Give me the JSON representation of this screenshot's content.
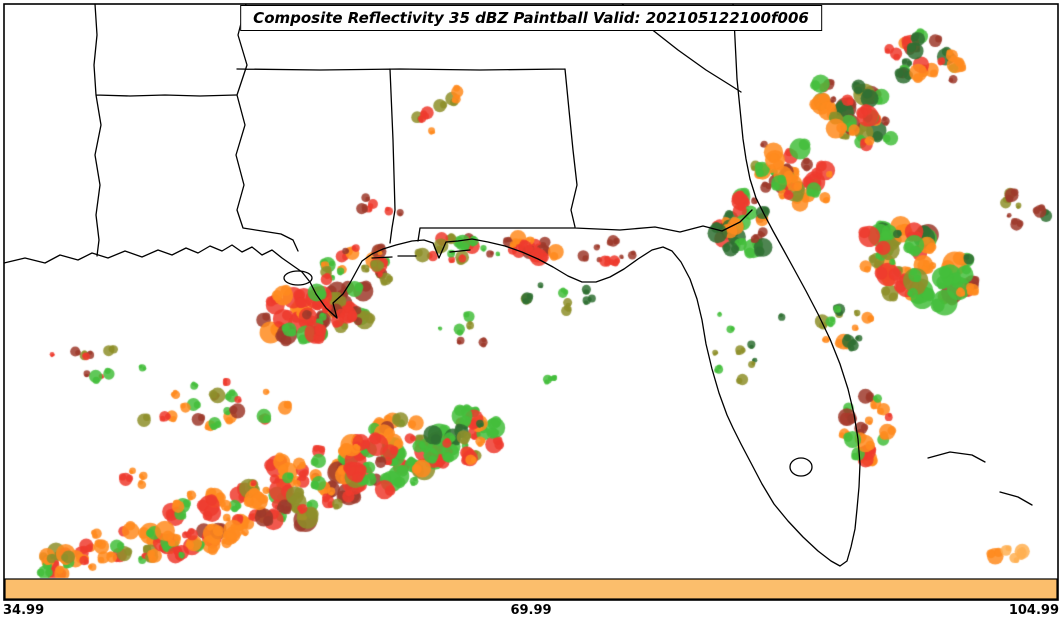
{
  "title": "Composite Reflectivity 35 dBZ Paintball Valid: 202105122100f006",
  "axis": {
    "ticks": [
      "34.99",
      "69.99",
      "104.99"
    ]
  },
  "colorbar_strip_color": "#FBBE6C",
  "palette": {
    "red": "#EE3B2E",
    "orange": "#FF8B1F",
    "lightorange": "#FFB052",
    "green": "#44BE3C",
    "darkgreen": "#2F7032",
    "olive": "#8E8F2A",
    "darkred": "#9E392C"
  },
  "chart_data": {
    "type": "paintball-map",
    "title": "Composite Reflectivity 35 dBZ Paintball",
    "threshold_dbz": 35,
    "valid": "202105122100f006",
    "x_ticks": [
      "34.99",
      "69.99",
      "104.99"
    ],
    "clusters": [
      {
        "name": "sw-band-outer",
        "cx": 105,
        "cy": 552,
        "sx": 75,
        "sy": 20,
        "rot": -12,
        "n": 42,
        "rmin": 3,
        "rmax": 10,
        "seed": 11,
        "colors": [
          "orange",
          "orange",
          "orange",
          "red",
          "green",
          "olive"
        ]
      },
      {
        "name": "sw-band-low",
        "cx": 205,
        "cy": 522,
        "sx": 60,
        "sy": 30,
        "rot": -18,
        "n": 48,
        "rmin": 3,
        "rmax": 11,
        "seed": 12,
        "colors": [
          "orange",
          "orange",
          "red",
          "red",
          "green",
          "darkred"
        ]
      },
      {
        "name": "sw-band-mid",
        "cx": 300,
        "cy": 488,
        "sx": 60,
        "sy": 34,
        "rot": -18,
        "n": 60,
        "rmin": 3,
        "rmax": 12,
        "seed": 13,
        "colors": [
          "orange",
          "orange",
          "orange",
          "red",
          "red",
          "green",
          "darkred",
          "olive"
        ]
      },
      {
        "name": "sw-band-upper",
        "cx": 395,
        "cy": 455,
        "sx": 55,
        "sy": 34,
        "rot": -18,
        "n": 60,
        "rmin": 3,
        "rmax": 12,
        "seed": 14,
        "colors": [
          "orange",
          "red",
          "red",
          "green",
          "green",
          "darkred",
          "olive"
        ]
      },
      {
        "name": "sw-band-east",
        "cx": 462,
        "cy": 438,
        "sx": 38,
        "sy": 26,
        "rot": -14,
        "n": 38,
        "rmin": 3,
        "rmax": 11,
        "seed": 15,
        "colors": [
          "green",
          "green",
          "orange",
          "red",
          "darkgreen",
          "olive"
        ]
      },
      {
        "name": "sw-scatter-north",
        "cx": 215,
        "cy": 408,
        "sx": 80,
        "sy": 26,
        "rot": -10,
        "n": 22,
        "rmin": 2,
        "rmax": 8,
        "seed": 16,
        "colors": [
          "olive",
          "green",
          "darkred",
          "red",
          "orange"
        ]
      },
      {
        "name": "west-olive-scatter",
        "cx": 95,
        "cy": 362,
        "sx": 55,
        "sy": 16,
        "rot": 0,
        "n": 12,
        "rmin": 2,
        "rmax": 7,
        "seed": 17,
        "colors": [
          "olive",
          "green",
          "darkred",
          "red"
        ]
      },
      {
        "name": "gulf-isolated-red",
        "cx": 135,
        "cy": 478,
        "sx": 14,
        "sy": 8,
        "rot": 0,
        "n": 4,
        "rmin": 3,
        "rmax": 7,
        "seed": 38,
        "colors": [
          "red",
          "orange"
        ]
      },
      {
        "name": "la-coast-dense",
        "cx": 315,
        "cy": 312,
        "sx": 60,
        "sy": 26,
        "rot": -8,
        "n": 50,
        "rmin": 3,
        "rmax": 11,
        "seed": 18,
        "colors": [
          "red",
          "red",
          "darkred",
          "darkred",
          "orange",
          "green",
          "olive"
        ]
      },
      {
        "name": "la-inland",
        "cx": 358,
        "cy": 268,
        "sx": 42,
        "sy": 22,
        "rot": 0,
        "n": 26,
        "rmin": 2,
        "rmax": 9,
        "seed": 19,
        "colors": [
          "green",
          "red",
          "darkred",
          "olive",
          "orange"
        ]
      },
      {
        "name": "ms-al-coast",
        "cx": 458,
        "cy": 250,
        "sx": 48,
        "sy": 13,
        "rot": 0,
        "n": 20,
        "rmin": 2,
        "rmax": 8,
        "seed": 20,
        "colors": [
          "red",
          "green",
          "darkred",
          "olive"
        ]
      },
      {
        "name": "fl-panhandle-coast",
        "cx": 532,
        "cy": 247,
        "sx": 32,
        "sy": 11,
        "rot": 0,
        "n": 16,
        "rmin": 3,
        "rmax": 9,
        "seed": 21,
        "colors": [
          "red",
          "red",
          "orange",
          "darkred"
        ]
      },
      {
        "name": "panhandle-east-scatter",
        "cx": 608,
        "cy": 252,
        "sx": 32,
        "sy": 14,
        "rot": 0,
        "n": 10,
        "rmin": 2,
        "rmax": 7,
        "seed": 22,
        "colors": [
          "darkred",
          "red",
          "olive"
        ]
      },
      {
        "name": "mid-small-scatter",
        "cx": 560,
        "cy": 300,
        "sx": 35,
        "sy": 18,
        "rot": 0,
        "n": 9,
        "rmin": 2,
        "rmax": 6,
        "seed": 23,
        "colors": [
          "olive",
          "green",
          "darkgreen"
        ]
      },
      {
        "name": "nola-east-scatter",
        "cx": 470,
        "cy": 330,
        "sx": 30,
        "sy": 14,
        "rot": 0,
        "n": 6,
        "rmin": 2,
        "rmax": 6,
        "seed": 37,
        "colors": [
          "olive",
          "darkred",
          "green"
        ]
      },
      {
        "name": "center-green-dot",
        "cx": 545,
        "cy": 380,
        "sx": 10,
        "sy": 8,
        "rot": 0,
        "n": 3,
        "rmin": 2,
        "rmax": 5,
        "seed": 36,
        "colors": [
          "green"
        ]
      },
      {
        "name": "al-top-scatter",
        "cx": 448,
        "cy": 112,
        "sx": 34,
        "sy": 22,
        "rot": 0,
        "n": 8,
        "rmin": 2,
        "rmax": 7,
        "seed": 24,
        "colors": [
          "orange",
          "olive",
          "red"
        ]
      },
      {
        "name": "ms-line-scatter",
        "cx": 382,
        "cy": 205,
        "sx": 22,
        "sy": 14,
        "rot": 0,
        "n": 6,
        "rmin": 2,
        "rmax": 6,
        "seed": 25,
        "colors": [
          "red",
          "darkred"
        ]
      },
      {
        "name": "ga-coast-cluster",
        "cx": 742,
        "cy": 228,
        "sx": 26,
        "sy": 34,
        "rot": 0,
        "n": 28,
        "rmin": 3,
        "rmax": 10,
        "seed": 26,
        "colors": [
          "red",
          "green",
          "orange",
          "darkred",
          "darkgreen"
        ]
      },
      {
        "name": "ga-band-low",
        "cx": 792,
        "cy": 172,
        "sx": 45,
        "sy": 30,
        "rot": 32,
        "n": 40,
        "rmin": 3,
        "rmax": 11,
        "seed": 27,
        "colors": [
          "red",
          "orange",
          "orange",
          "darkred",
          "green",
          "olive"
        ]
      },
      {
        "name": "ga-band-mid",
        "cx": 858,
        "cy": 112,
        "sx": 48,
        "sy": 28,
        "rot": 32,
        "n": 38,
        "rmin": 3,
        "rmax": 11,
        "seed": 28,
        "colors": [
          "red",
          "orange",
          "darkred",
          "green",
          "olive",
          "darkgreen"
        ]
      },
      {
        "name": "ga-band-high",
        "cx": 925,
        "cy": 62,
        "sx": 42,
        "sy": 24,
        "rot": 32,
        "n": 26,
        "rmin": 3,
        "rmax": 10,
        "seed": 29,
        "colors": [
          "darkgreen",
          "orange",
          "red",
          "darkred",
          "green"
        ]
      },
      {
        "name": "atl-fl-band",
        "cx": 920,
        "cy": 268,
        "sx": 65,
        "sy": 38,
        "rot": 25,
        "n": 60,
        "rmin": 3,
        "rmax": 13,
        "seed": 30,
        "colors": [
          "green",
          "green",
          "orange",
          "orange",
          "darkgreen",
          "darkred",
          "red",
          "olive"
        ]
      },
      {
        "name": "atl-edge-scatter",
        "cx": 1022,
        "cy": 208,
        "sx": 28,
        "sy": 18,
        "rot": 0,
        "n": 8,
        "rmin": 2,
        "rmax": 7,
        "seed": 31,
        "colors": [
          "olive",
          "darkgreen",
          "darkred"
        ]
      },
      {
        "name": "fl-east-upper",
        "cx": 845,
        "cy": 328,
        "sx": 28,
        "sy": 20,
        "rot": 0,
        "n": 13,
        "rmin": 2,
        "rmax": 8,
        "seed": 32,
        "colors": [
          "green",
          "olive",
          "darkgreen",
          "orange"
        ]
      },
      {
        "name": "fl-east-cape",
        "cx": 866,
        "cy": 428,
        "sx": 24,
        "sy": 34,
        "rot": 0,
        "n": 22,
        "rmin": 3,
        "rmax": 9,
        "seed": 33,
        "colors": [
          "red",
          "green",
          "orange",
          "darkred"
        ]
      },
      {
        "name": "fl-inland-scatter",
        "cx": 748,
        "cy": 340,
        "sx": 40,
        "sy": 45,
        "rot": 0,
        "n": 10,
        "rmin": 2,
        "rmax": 6,
        "seed": 34,
        "colors": [
          "olive",
          "green",
          "darkgreen"
        ]
      },
      {
        "name": "bottom-right-orange",
        "cx": 1008,
        "cy": 551,
        "sx": 20,
        "sy": 9,
        "rot": 0,
        "n": 5,
        "rmin": 4,
        "rmax": 9,
        "seed": 35,
        "colors": [
          "orange",
          "lightorange"
        ]
      }
    ]
  }
}
